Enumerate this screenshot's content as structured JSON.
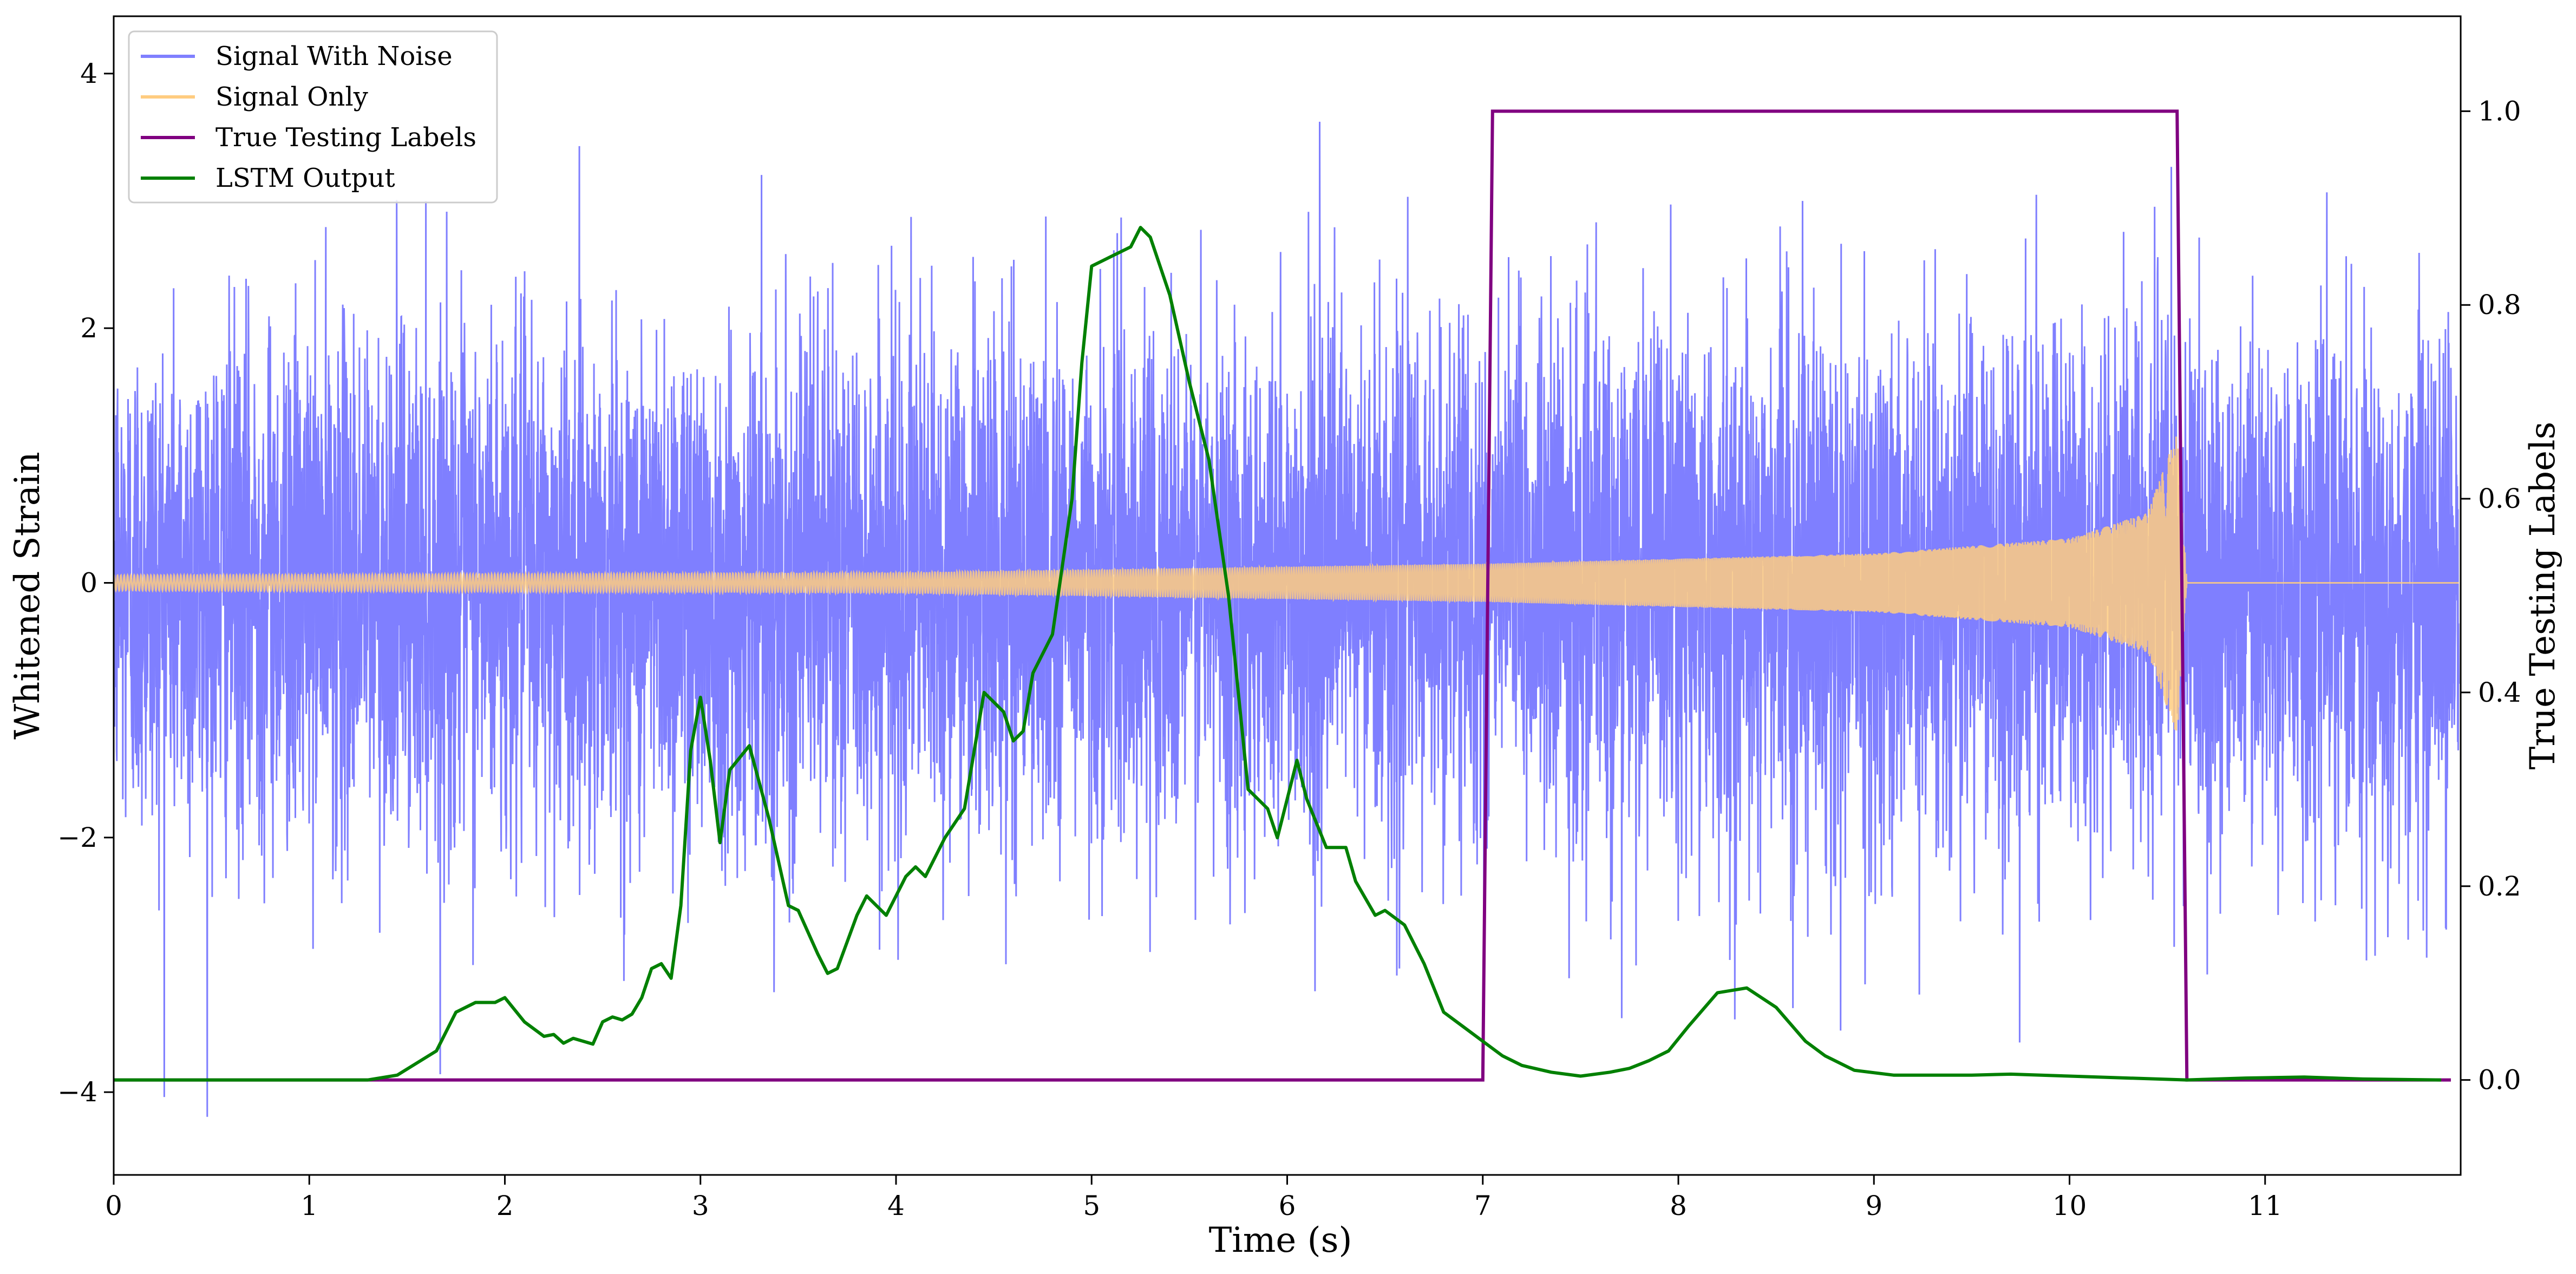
{
  "chart_data": {
    "type": "line",
    "title": "",
    "xlabel": "Time (s)",
    "ylabel": "Whitened Strain",
    "y2label": "True Testing Labels",
    "xlim": [
      0,
      12
    ],
    "ylim": [
      -4.65,
      4.45
    ],
    "y2lim": [
      -0.098,
      1.098
    ],
    "x_ticks": [
      0,
      1,
      2,
      3,
      4,
      5,
      6,
      7,
      8,
      9,
      10,
      11
    ],
    "x_tick_labels": [
      "0",
      "1",
      "2",
      "3",
      "4",
      "5",
      "6",
      "7",
      "8",
      "9",
      "10",
      "11"
    ],
    "y_ticks": [
      -4,
      -2,
      0,
      2,
      4
    ],
    "y_tick_labels": [
      "−4",
      "−2",
      "0",
      "2",
      "4"
    ],
    "y2_ticks": [
      0.0,
      0.2,
      0.4,
      0.6,
      0.8,
      1.0
    ],
    "y2_tick_labels": [
      "0.0",
      "0.2",
      "0.4",
      "0.6",
      "0.8",
      "1.0"
    ],
    "grid": false,
    "legend_position": "top-left",
    "series": [
      {
        "name": "Signal With Noise",
        "color": "#7f7fff",
        "axis": "left",
        "kind": "noise",
        "approx_std": 1.0,
        "approx_range": [
          -4.27,
          3.92
        ],
        "x_range": [
          0,
          11.99
        ]
      },
      {
        "name": "Signal Only",
        "color": "#ffcc80",
        "axis": "left",
        "kind": "chirp",
        "x_range": [
          0,
          11.99
        ],
        "merger_time": 10.6,
        "envelope": [
          [
            0,
            0.06
          ],
          [
            4,
            0.08
          ],
          [
            7,
            0.15
          ],
          [
            9,
            0.23
          ],
          [
            10,
            0.35
          ],
          [
            10.4,
            0.55
          ],
          [
            10.55,
            1.2
          ],
          [
            10.6,
            0.0
          ]
        ]
      },
      {
        "name": "True Testing Labels",
        "color": "#800080",
        "axis": "right",
        "x": [
          0,
          7.0,
          7.05,
          10.55,
          10.6,
          11.95
        ],
        "y": [
          0,
          0,
          1,
          1,
          0,
          0
        ]
      },
      {
        "name": "LSTM Output",
        "color": "#008000",
        "axis": "right",
        "x": [
          0,
          1.0,
          1.3,
          1.45,
          1.65,
          1.75,
          1.85,
          1.95,
          2.0,
          2.1,
          2.2,
          2.25,
          2.3,
          2.35,
          2.45,
          2.5,
          2.55,
          2.6,
          2.65,
          2.7,
          2.75,
          2.8,
          2.85,
          2.9,
          2.95,
          3.0,
          3.05,
          3.1,
          3.15,
          3.25,
          3.35,
          3.45,
          3.5,
          3.6,
          3.65,
          3.7,
          3.8,
          3.85,
          3.95,
          4.05,
          4.1,
          4.15,
          4.25,
          4.35,
          4.45,
          4.55,
          4.6,
          4.65,
          4.7,
          4.8,
          4.9,
          4.95,
          5.0,
          5.1,
          5.2,
          5.25,
          5.3,
          5.35,
          5.4,
          5.5,
          5.6,
          5.7,
          5.8,
          5.9,
          5.95,
          6.05,
          6.1,
          6.2,
          6.3,
          6.35,
          6.45,
          6.5,
          6.6,
          6.7,
          6.8,
          6.9,
          7.0,
          7.1,
          7.2,
          7.35,
          7.5,
          7.65,
          7.75,
          7.85,
          7.95,
          8.05,
          8.2,
          8.35,
          8.5,
          8.65,
          8.75,
          8.9,
          9.1,
          9.3,
          9.5,
          9.7,
          10.0,
          10.3,
          10.6,
          10.9,
          11.2,
          11.5,
          11.9
        ],
        "y": [
          0.0,
          0.0,
          0.0,
          0.005,
          0.03,
          0.07,
          0.08,
          0.08,
          0.085,
          0.06,
          0.045,
          0.047,
          0.038,
          0.043,
          0.037,
          0.06,
          0.065,
          0.062,
          0.068,
          0.085,
          0.115,
          0.12,
          0.105,
          0.18,
          0.34,
          0.395,
          0.33,
          0.245,
          0.32,
          0.345,
          0.27,
          0.18,
          0.175,
          0.13,
          0.11,
          0.115,
          0.17,
          0.19,
          0.17,
          0.21,
          0.22,
          0.21,
          0.25,
          0.28,
          0.4,
          0.38,
          0.35,
          0.36,
          0.42,
          0.46,
          0.6,
          0.74,
          0.84,
          0.85,
          0.86,
          0.88,
          0.87,
          0.84,
          0.81,
          0.72,
          0.64,
          0.5,
          0.3,
          0.28,
          0.25,
          0.33,
          0.29,
          0.24,
          0.24,
          0.205,
          0.17,
          0.175,
          0.16,
          0.12,
          0.07,
          0.055,
          0.04,
          0.025,
          0.015,
          0.008,
          0.004,
          0.008,
          0.012,
          0.02,
          0.03,
          0.055,
          0.09,
          0.095,
          0.075,
          0.04,
          0.025,
          0.01,
          0.005,
          0.005,
          0.005,
          0.006,
          0.004,
          0.002,
          0.0,
          0.002,
          0.003,
          0.001,
          0.0
        ]
      }
    ]
  }
}
